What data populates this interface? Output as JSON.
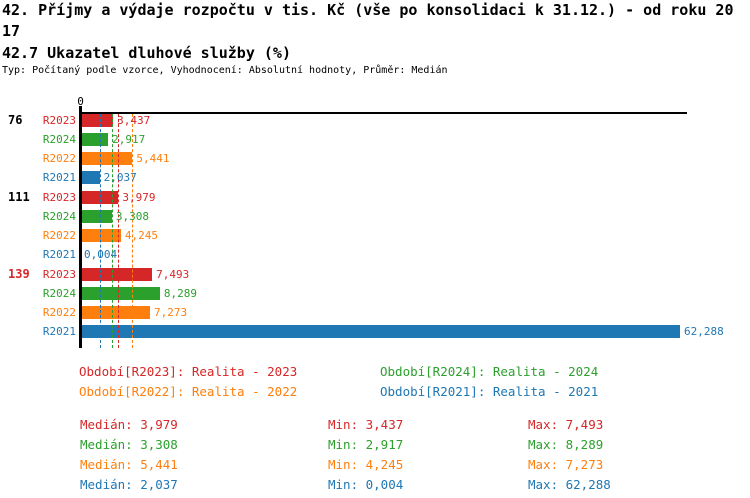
{
  "title": "42. Příjmy a výdaje rozpočtu v tis. Kč (vše po konsolidaci k 31.12.) - od roku 2017",
  "subtitle": "42.7 Ukazatel dluhové služby (%)",
  "meta": "Typ: Počítaný podle vzorce, Vyhodnocení: Absolutní hodnoty, Průměr: Medián",
  "chart_data": {
    "type": "bar",
    "orientation": "horizontal",
    "grid": false,
    "legend_position": "bottom",
    "value_format": "czech-decimal-comma",
    "axis": {
      "zero_label": "0",
      "min": 0,
      "max": 62.288
    },
    "series": [
      {
        "name": "R2023",
        "color": "#d62728",
        "legend": "Období[R2023]: Realita - 2023",
        "median": 3.979,
        "median_display": "3,979",
        "min": 3.437,
        "min_display": "3,437",
        "max": 7.493,
        "max_display": "7,493"
      },
      {
        "name": "R2024",
        "color": "#2ca02c",
        "legend": "Období[R2024]: Realita - 2024",
        "median": 3.308,
        "median_display": "3,308",
        "min": 2.917,
        "min_display": "2,917",
        "max": 8.289,
        "max_display": "8,289"
      },
      {
        "name": "R2022",
        "color": "#ff7f0e",
        "legend": "Období[R2022]: Realita - 2022",
        "median": 5.441,
        "median_display": "5,441",
        "min": 4.245,
        "min_display": "4,245",
        "max": 7.273,
        "max_display": "7,273"
      },
      {
        "name": "R2021",
        "color": "#1f77b4",
        "legend": "Období[R2021]: Realita - 2021",
        "median": 2.037,
        "median_display": "2,037",
        "min": 0.004,
        "min_display": "0,004",
        "max": 62.288,
        "max_display": "62,288"
      }
    ],
    "groups": [
      {
        "label": "76",
        "label_color": "#000000",
        "bars": [
          {
            "series": "R2023",
            "value": 3.437,
            "display": "3,437"
          },
          {
            "series": "R2024",
            "value": 2.917,
            "display": "2,917"
          },
          {
            "series": "R2022",
            "value": 5.441,
            "display": "5,441"
          },
          {
            "series": "R2021",
            "value": 2.037,
            "display": "2,037"
          }
        ]
      },
      {
        "label": "111",
        "label_color": "#000000",
        "bars": [
          {
            "series": "R2023",
            "value": 3.979,
            "display": "3,979"
          },
          {
            "series": "R2024",
            "value": 3.308,
            "display": "3,308"
          },
          {
            "series": "R2022",
            "value": 4.245,
            "display": "4,245"
          },
          {
            "series": "R2021",
            "value": 0.004,
            "display": "0,004"
          }
        ]
      },
      {
        "label": "139",
        "label_color": "#d62728",
        "bars": [
          {
            "series": "R2023",
            "value": 7.493,
            "display": "7,493"
          },
          {
            "series": "R2024",
            "value": 8.289,
            "display": "8,289"
          },
          {
            "series": "R2022",
            "value": 7.273,
            "display": "7,273"
          },
          {
            "series": "R2021",
            "value": 62.288,
            "display": "62,288"
          }
        ]
      }
    ],
    "stats_labels": {
      "median": "Medián",
      "min": "Min",
      "max": "Max"
    }
  }
}
